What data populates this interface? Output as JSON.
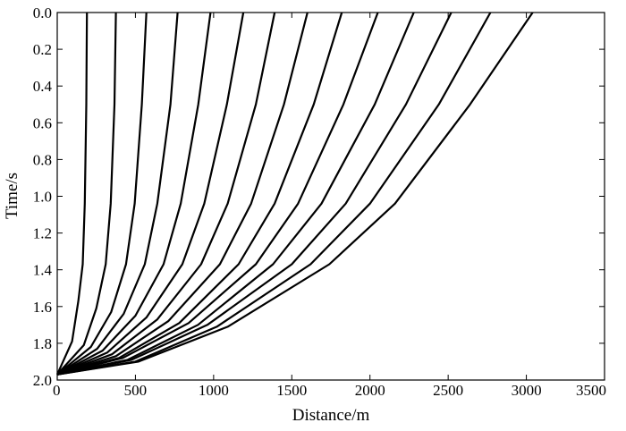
{
  "chart_data": {
    "type": "line",
    "title": "",
    "xlabel": "Distance/m",
    "ylabel": "Time/s",
    "xlim": [
      0,
      3500
    ],
    "ylim": [
      0.0,
      2.0
    ],
    "y_inverted": true,
    "grid": false,
    "legend": "none",
    "line_color": "#000000",
    "x_ticks": [
      "0",
      "500",
      "1000",
      "1500",
      "2000",
      "2500",
      "3000",
      "3500"
    ],
    "y_ticks": [
      "0.0",
      "0.2",
      "0.4",
      "0.6",
      "0.8",
      "1.0",
      "1.2",
      "1.4",
      "1.6",
      "1.8",
      "2.0"
    ],
    "series": [
      {
        "points": [
          [
            0,
            1.97
          ],
          [
            95,
            1.79
          ],
          [
            135,
            1.57
          ],
          [
            163,
            1.37
          ],
          [
            176,
            1.04
          ],
          [
            186,
            0.5
          ],
          [
            190,
            0.0
          ]
        ]
      },
      {
        "points": [
          [
            0,
            1.97
          ],
          [
            170,
            1.81
          ],
          [
            250,
            1.61
          ],
          [
            310,
            1.37
          ],
          [
            342,
            1.04
          ],
          [
            366,
            0.5
          ],
          [
            375,
            0.0
          ]
        ]
      },
      {
        "points": [
          [
            0,
            1.97
          ],
          [
            215,
            1.82
          ],
          [
            345,
            1.63
          ],
          [
            440,
            1.37
          ],
          [
            495,
            1.04
          ],
          [
            541,
            0.5
          ],
          [
            570,
            0.0
          ]
        ]
      },
      {
        "points": [
          [
            0,
            1.97
          ],
          [
            255,
            1.83
          ],
          [
            425,
            1.64
          ],
          [
            560,
            1.37
          ],
          [
            640,
            1.04
          ],
          [
            724,
            0.5
          ],
          [
            770,
            0.0
          ]
        ]
      },
      {
        "points": [
          [
            0,
            1.97
          ],
          [
            290,
            1.84
          ],
          [
            500,
            1.65
          ],
          [
            680,
            1.37
          ],
          [
            790,
            1.04
          ],
          [
            902,
            0.5
          ],
          [
            980,
            0.0
          ]
        ]
      },
      {
        "points": [
          [
            0,
            1.97
          ],
          [
            320,
            1.85
          ],
          [
            570,
            1.66
          ],
          [
            800,
            1.37
          ],
          [
            940,
            1.04
          ],
          [
            1085,
            0.5
          ],
          [
            1190,
            0.0
          ]
        ]
      },
      {
        "points": [
          [
            0,
            1.97
          ],
          [
            350,
            1.86
          ],
          [
            640,
            1.67
          ],
          [
            920,
            1.37
          ],
          [
            1090,
            1.04
          ],
          [
            1270,
            0.5
          ],
          [
            1390,
            0.0
          ]
        ]
      },
      {
        "points": [
          [
            0,
            1.97
          ],
          [
            375,
            1.87
          ],
          [
            710,
            1.68
          ],
          [
            1040,
            1.37
          ],
          [
            1240,
            1.04
          ],
          [
            1450,
            0.5
          ],
          [
            1600,
            0.0
          ]
        ]
      },
      {
        "points": [
          [
            0,
            1.97
          ],
          [
            395,
            1.88
          ],
          [
            780,
            1.69
          ],
          [
            1160,
            1.37
          ],
          [
            1390,
            1.04
          ],
          [
            1640,
            0.5
          ],
          [
            1820,
            0.0
          ]
        ]
      },
      {
        "points": [
          [
            0,
            1.97
          ],
          [
            420,
            1.88
          ],
          [
            840,
            1.69
          ],
          [
            1270,
            1.37
          ],
          [
            1540,
            1.04
          ],
          [
            1830,
            0.5
          ],
          [
            2050,
            0.0
          ]
        ]
      },
      {
        "points": [
          [
            0,
            1.97
          ],
          [
            450,
            1.89
          ],
          [
            900,
            1.7
          ],
          [
            1380,
            1.37
          ],
          [
            1690,
            1.04
          ],
          [
            2030,
            0.5
          ],
          [
            2280,
            0.0
          ]
        ]
      },
      {
        "points": [
          [
            0,
            1.97
          ],
          [
            475,
            1.89
          ],
          [
            960,
            1.7
          ],
          [
            1500,
            1.37
          ],
          [
            1845,
            1.04
          ],
          [
            2230,
            0.5
          ],
          [
            2520,
            0.0
          ]
        ]
      },
      {
        "points": [
          [
            0,
            1.97
          ],
          [
            500,
            1.9
          ],
          [
            1020,
            1.71
          ],
          [
            1620,
            1.37
          ],
          [
            2000,
            1.04
          ],
          [
            2440,
            0.5
          ],
          [
            2770,
            0.0
          ]
        ]
      },
      {
        "points": [
          [
            0,
            1.97
          ],
          [
            520,
            1.9
          ],
          [
            1090,
            1.71
          ],
          [
            1740,
            1.37
          ],
          [
            2160,
            1.04
          ],
          [
            2640,
            0.5
          ],
          [
            3040,
            0.0
          ]
        ]
      }
    ]
  }
}
